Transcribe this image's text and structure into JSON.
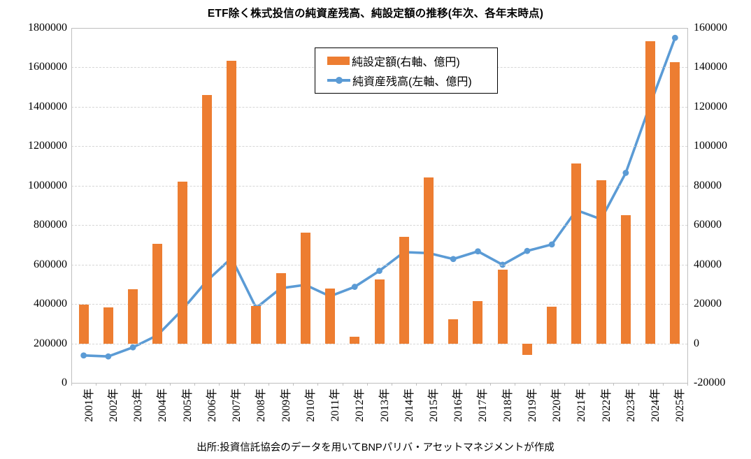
{
  "title": "ETF除く株式投信の純資産残高、純設定額の推移(年次、各年末時点)",
  "source": "出所:投資信託協会のデータを用いてBNPパリバ・アセットマネジメントが作成",
  "colors": {
    "bar": "#ED7D31",
    "line": "#5B9BD5",
    "grid": "#D6D6D6",
    "plot_border": "#BFBFBF",
    "text": "#000000",
    "legend_border": "#000000",
    "background": "#FFFFFF"
  },
  "legend": {
    "items": [
      {
        "label": "純設定額(右軸、億円)",
        "swatch": "bar"
      },
      {
        "label": "純資産残高(左軸、億円)",
        "swatch": "line-with-marker"
      }
    ],
    "position": "top-center"
  },
  "chart_data": {
    "type": "bar",
    "subtype": "bar-and-line-dual-axis",
    "title": "ETF除く株式投信の純資産残高、純設定額の推移(年次、各年末時点)",
    "categories": [
      "2001年",
      "2002年",
      "2003年",
      "2004年",
      "2005年",
      "2006年",
      "2007年",
      "2008年",
      "2009年",
      "2010年",
      "2011年",
      "2012年",
      "2013年",
      "2014年",
      "2015年",
      "2016年",
      "2017年",
      "2018年",
      "2019年",
      "2020年",
      "2021年",
      "2022年",
      "2023年",
      "2024年",
      "2025年"
    ],
    "series": [
      {
        "name": "純設定額(右軸、億円)",
        "type": "bar",
        "axis": "right",
        "color": "#ED7D31",
        "values": [
          19800,
          18400,
          27500,
          50500,
          82000,
          126000,
          143300,
          19000,
          35700,
          56300,
          27700,
          3500,
          32600,
          54000,
          84200,
          12200,
          21600,
          37300,
          -5800,
          18500,
          91400,
          82700,
          65200,
          153100,
          142500
        ]
      },
      {
        "name": "純資産残高(左軸、億円)",
        "type": "line",
        "axis": "left",
        "color": "#5B9BD5",
        "marker": "circle",
        "values": [
          139000,
          134000,
          180000,
          242000,
          370000,
          517000,
          633000,
          380000,
          480000,
          497000,
          439000,
          487000,
          568000,
          663000,
          658000,
          628000,
          667000,
          599000,
          669000,
          702000,
          876000,
          830000,
          1065000,
          1414000,
          1750000
        ]
      }
    ],
    "left_axis": {
      "min": 0,
      "max": 1800000,
      "step": 200000,
      "ticks": [
        "0",
        "200000",
        "400000",
        "600000",
        "800000",
        "1000000",
        "1200000",
        "1400000",
        "1600000",
        "1800000"
      ]
    },
    "right_axis": {
      "min": -20000,
      "max": 160000,
      "step": 20000,
      "ticks": [
        "-20000",
        "0",
        "20000",
        "40000",
        "60000",
        "80000",
        "100000",
        "120000",
        "140000",
        "160000"
      ]
    },
    "grid": "horizontal-dashed",
    "legend_position": "top-center-inside",
    "xlabel_rotation": -90
  }
}
